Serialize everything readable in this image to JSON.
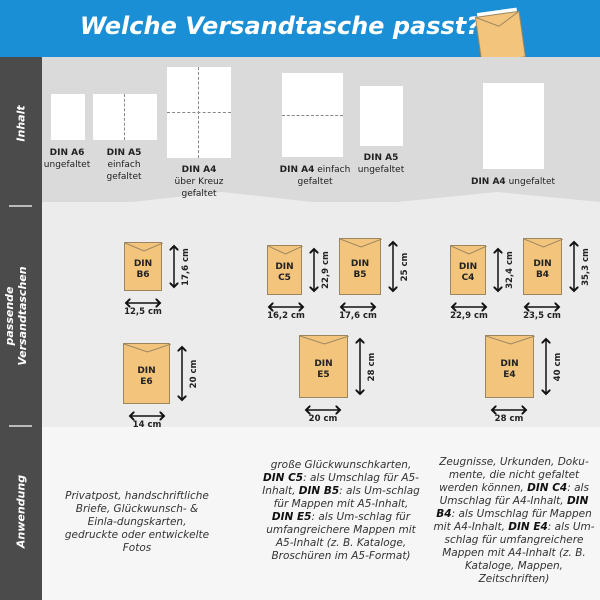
{
  "header": {
    "title": "Welche Versandtasche passt?",
    "icon": "envelope-icon",
    "color": "#1b8fd5"
  },
  "sidebar": {
    "sections": [
      "Inhalt",
      "passende Versandtaschen",
      "Anwendung"
    ]
  },
  "content": [
    {
      "bold": "DIN A6",
      "text": [
        "ungefaltet"
      ]
    },
    {
      "bold": "DIN A5",
      "text": [
        "einfach",
        "gefaltet"
      ]
    },
    {
      "bold": "DIN A4",
      "text": [
        "über Kreuz",
        "gefaltet"
      ]
    },
    {
      "bold": "DIN A4",
      "text": [
        "einfach",
        "gefaltet"
      ]
    },
    {
      "bold": "DIN A5",
      "text": [
        "ungefaltet"
      ]
    },
    {
      "bold": "DIN A4",
      "text": [
        "ungefaltet"
      ]
    }
  ],
  "envelopes": [
    {
      "line1": "DIN",
      "line2": "B6",
      "width": "12,5 cm",
      "height": "17,6 cm"
    },
    {
      "line1": "DIN",
      "line2": "E6",
      "width": "14 cm",
      "height": "20 cm"
    },
    {
      "line1": "DIN",
      "line2": "C5",
      "width": "16,2 cm",
      "height": "22,9 cm"
    },
    {
      "line1": "DIN",
      "line2": "B5",
      "width": "17,6 cm",
      "height": "25 cm"
    },
    {
      "line1": "DIN",
      "line2": "E5",
      "width": "20 cm",
      "height": "28 cm"
    },
    {
      "line1": "DIN",
      "line2": "C4",
      "width": "22,9 cm",
      "height": "32,4 cm"
    },
    {
      "line1": "DIN",
      "line2": "B4",
      "width": "23,5 cm",
      "height": "35,3 cm"
    },
    {
      "line1": "DIN",
      "line2": "E4",
      "width": "28 cm",
      "height": "40 cm"
    }
  ],
  "usage": [
    [
      {
        "t": "Privatpost, handschriftliche Briefe, Glückwunsch- & Einla-dungskarten, gedruckte oder entwickelte Fotos"
      }
    ],
    [
      {
        "t": "große Glückwunschkarten, "
      },
      {
        "b": "DIN C5"
      },
      {
        "t": ": als Umschlag für A5-Inhalt, "
      },
      {
        "b": "DIN B5"
      },
      {
        "t": ": als Um-schlag für Mappen mit A5-Inhalt, "
      },
      {
        "b": "DIN E5"
      },
      {
        "t": ": als Um-schlag für umfangreichere Mappen mit A5-Inhalt (z. B. Kataloge, Broschüren im A5-Format)"
      }
    ],
    [
      {
        "t": "Zeugnisse, Urkunden, Doku-mente, die nicht gefaltet werden können, "
      },
      {
        "b": "DIN C4"
      },
      {
        "t": ": als Umschlag für A4-Inhalt, "
      },
      {
        "b": "DIN B4"
      },
      {
        "t": ": als Umschlag für Mappen mit A4-Inhalt, "
      },
      {
        "b": "DIN E4"
      },
      {
        "t": ": als Um-schlag für umfangreichere Mappen mit A4-Inhalt (z. B. Kataloge, Mappen, Zeitschriften)"
      }
    ]
  ]
}
